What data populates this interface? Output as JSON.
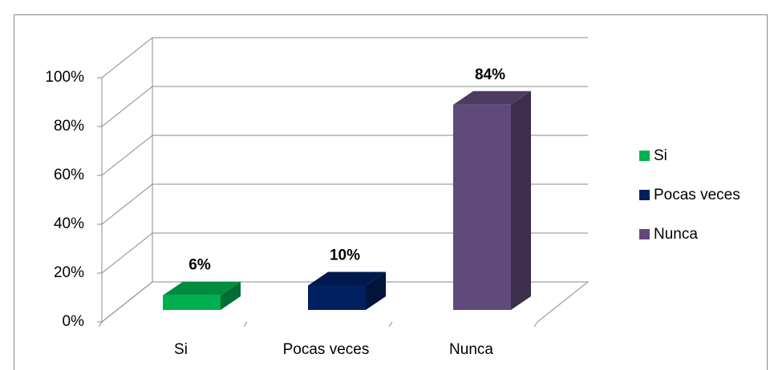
{
  "chart_data": {
    "type": "bar3d",
    "categories": [
      "Si",
      "Pocas veces",
      "Nunca"
    ],
    "values": [
      6,
      10,
      84
    ],
    "value_labels": [
      "6%",
      "10%",
      "84%"
    ],
    "colors": [
      "#00b050",
      "#002060",
      "#604a7b"
    ],
    "ylim": [
      0,
      100
    ],
    "yticks": [
      {
        "value": 0,
        "label": "0%"
      },
      {
        "value": 20,
        "label": "20%"
      },
      {
        "value": 40,
        "label": "40%"
      },
      {
        "value": 60,
        "label": "60%"
      },
      {
        "value": 80,
        "label": "80%"
      },
      {
        "value": 100,
        "label": "100%"
      }
    ],
    "grid": true,
    "legend": "right"
  }
}
